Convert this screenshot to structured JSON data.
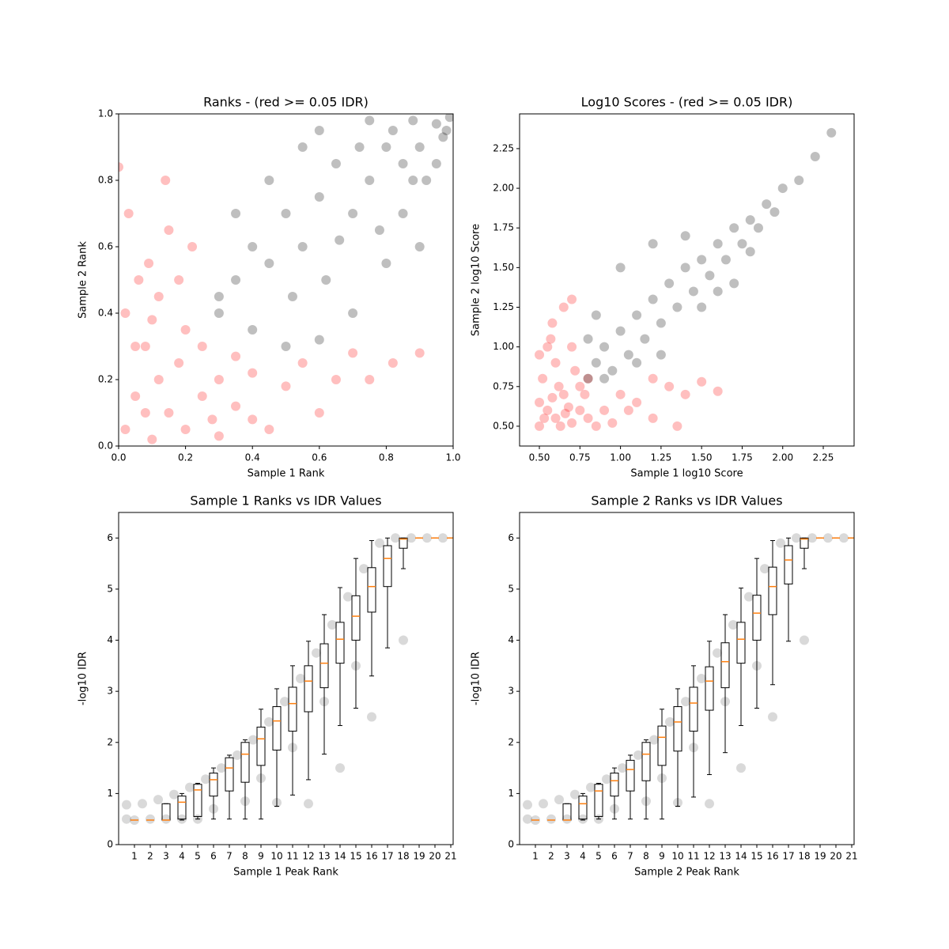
{
  "chart_data": [
    {
      "type": "scatter",
      "title": "Ranks - (red >= 0.05 IDR)",
      "x_label": "Sample 1 Rank",
      "y_label": "Sample 2 Rank",
      "xlim": [
        0,
        1
      ],
      "ylim": [
        0,
        1
      ],
      "xticks": [
        {
          "value": 0,
          "label": "0.0"
        },
        0.2,
        0.4,
        0.6,
        0.8,
        {
          "value": 1,
          "label": "1.0"
        }
      ],
      "yticks": [
        {
          "value": 0,
          "label": "0.0"
        },
        0.2,
        0.4,
        0.6,
        0.8,
        {
          "value": 1,
          "label": "1.0"
        }
      ],
      "alpha": 0.25,
      "series": [
        {
          "color": "#ff0000",
          "x": [
            0.02,
            0.05,
            0.08,
            0.1,
            0.12,
            0.15,
            0.18,
            0.2,
            0.22,
            0.25,
            0.28,
            0.3,
            0.35,
            0.4,
            0.45,
            0.5,
            0.55,
            0.6,
            0.65,
            0.7,
            0.03,
            0.06,
            0.1,
            0.0,
            0.14,
            0.2,
            0.05,
            0.08,
            0.12,
            0.3,
            0.4,
            0.18,
            0.02,
            0.25,
            0.75,
            0.82,
            0.9,
            0.15,
            0.09,
            0.35
          ],
          "y": [
            0.05,
            0.15,
            0.3,
            0.02,
            0.45,
            0.1,
            0.25,
            0.05,
            0.6,
            0.15,
            0.08,
            0.2,
            0.12,
            0.22,
            0.05,
            0.18,
            0.25,
            0.1,
            0.2,
            0.28,
            0.7,
            0.5,
            0.38,
            0.84,
            0.8,
            0.35,
            0.3,
            0.1,
            0.2,
            0.03,
            0.08,
            0.5,
            0.4,
            0.3,
            0.2,
            0.25,
            0.28,
            0.65,
            0.55,
            0.27
          ]
        },
        {
          "color": "#000000",
          "x": [
            0.3,
            0.35,
            0.4,
            0.45,
            0.5,
            0.55,
            0.6,
            0.62,
            0.65,
            0.7,
            0.72,
            0.75,
            0.78,
            0.8,
            0.82,
            0.85,
            0.88,
            0.9,
            0.92,
            0.95,
            0.97,
            0.99,
            0.5,
            0.6,
            0.7,
            0.8,
            0.4,
            0.35,
            0.45,
            0.55,
            0.9,
            0.85,
            0.3,
            0.6,
            0.75,
            0.95,
            0.98,
            0.88,
            0.66,
            0.52
          ],
          "y": [
            0.45,
            0.5,
            0.6,
            0.55,
            0.7,
            0.6,
            0.75,
            0.5,
            0.85,
            0.7,
            0.9,
            0.8,
            0.65,
            0.9,
            0.95,
            0.85,
            0.98,
            0.9,
            0.8,
            0.97,
            0.93,
            0.99,
            0.3,
            0.32,
            0.4,
            0.55,
            0.35,
            0.7,
            0.8,
            0.9,
            0.6,
            0.7,
            0.4,
            0.95,
            0.98,
            0.85,
            0.95,
            0.8,
            0.62,
            0.45
          ]
        }
      ]
    },
    {
      "type": "scatter",
      "title": "Log10 Scores - (red >= 0.05 IDR)",
      "x_label": "Sample 1 log10 Score",
      "y_label": "Sample 2 log10 Score",
      "xlim": [
        0.378,
        2.44
      ],
      "ylim": [
        0.375,
        2.469
      ],
      "xticks": [
        {
          "value": 0.5,
          "label": "0.50"
        },
        0.75,
        {
          "value": 1,
          "label": "1.00"
        },
        1.25,
        {
          "value": 1.5,
          "label": "1.50"
        },
        1.75,
        {
          "value": 2,
          "label": "2.00"
        },
        2.25
      ],
      "yticks": [
        {
          "value": 0.5,
          "label": "0.50"
        },
        0.75,
        {
          "value": 1,
          "label": "1.00"
        },
        1.25,
        {
          "value": 1.5,
          "label": "1.50"
        },
        1.75,
        {
          "value": 2,
          "label": "2.00"
        },
        2.25
      ],
      "alpha": 0.25,
      "series": [
        {
          "color": "#ff0000",
          "x": [
            0.5,
            0.55,
            0.6,
            0.65,
            0.7,
            0.52,
            0.55,
            0.6,
            0.58,
            0.75,
            0.8,
            0.9,
            1.0,
            1.1,
            1.2,
            1.3,
            1.4,
            1.5,
            0.65,
            0.7,
            0.5,
            0.53,
            0.62,
            0.68,
            0.72,
            0.78,
            0.85,
            0.95,
            0.57,
            0.63,
            1.6,
            1.05,
            0.5,
            0.75,
            0.58,
            0.66,
            1.2,
            1.35,
            0.8,
            0.7
          ],
          "y": [
            0.5,
            0.6,
            0.55,
            0.7,
            0.52,
            0.8,
            1.0,
            0.9,
            1.15,
            0.6,
            0.55,
            0.6,
            0.7,
            0.65,
            0.55,
            0.75,
            0.7,
            0.78,
            1.25,
            1.3,
            0.65,
            0.55,
            0.75,
            0.62,
            0.85,
            0.7,
            0.5,
            0.52,
            1.05,
            0.5,
            0.72,
            0.6,
            0.95,
            0.75,
            0.68,
            0.58,
            0.8,
            0.5,
            0.8,
            1.0
          ]
        },
        {
          "color": "#000000",
          "x": [
            0.8,
            0.85,
            0.9,
            0.95,
            1.0,
            1.05,
            1.1,
            1.15,
            1.2,
            1.25,
            1.3,
            1.35,
            1.4,
            1.45,
            1.5,
            1.55,
            1.6,
            1.65,
            1.7,
            1.75,
            1.8,
            1.85,
            1.9,
            1.95,
            2.0,
            2.1,
            2.2,
            2.3,
            0.85,
            1.0,
            1.2,
            1.5,
            1.7,
            0.9,
            1.25,
            1.4,
            1.6,
            0.8,
            1.1,
            1.8
          ],
          "y": [
            0.8,
            0.9,
            1.0,
            0.85,
            1.1,
            0.95,
            1.2,
            1.05,
            1.3,
            1.15,
            1.4,
            1.25,
            1.5,
            1.35,
            1.55,
            1.45,
            1.65,
            1.55,
            1.75,
            1.65,
            1.8,
            1.75,
            1.9,
            1.85,
            2.0,
            2.05,
            2.2,
            2.35,
            1.2,
            1.5,
            1.65,
            1.25,
            1.4,
            0.8,
            0.95,
            1.7,
            1.35,
            1.05,
            0.9,
            1.6
          ]
        }
      ]
    },
    {
      "type": "box",
      "title": "Sample 1 Ranks vs IDR Values",
      "x_label": "Sample 1 Peak Rank",
      "y_label": "-log10 IDR",
      "xlim": [
        0,
        21.15
      ],
      "ylim": [
        0,
        6.5
      ],
      "xticks": [
        1,
        2,
        3,
        4,
        5,
        6,
        7,
        8,
        9,
        10,
        11,
        12,
        13,
        14,
        15,
        16,
        17,
        18,
        19,
        20,
        21
      ],
      "yticks": [
        0,
        1,
        2,
        3,
        4,
        5,
        6
      ],
      "points": {
        "color": "#000000",
        "alpha": 0.15,
        "x": [
          0.5,
          1,
          2,
          3,
          4,
          5,
          0.5,
          1.5,
          2.5,
          3.5,
          4.5,
          5.5,
          6.5,
          7.5,
          8.5,
          9.5,
          10.5,
          11.5,
          12.5,
          13.5,
          14.5,
          15.5,
          16.5,
          17.5,
          18.5,
          19.5,
          20.5,
          8,
          10,
          12,
          14,
          16,
          18,
          15,
          6,
          9,
          11,
          13
        ],
        "y": [
          0.5,
          0.48,
          0.5,
          0.5,
          0.5,
          0.5,
          0.78,
          0.8,
          0.88,
          0.98,
          1.12,
          1.28,
          1.5,
          1.75,
          2.05,
          2.4,
          2.8,
          3.25,
          3.75,
          4.3,
          4.85,
          5.4,
          5.9,
          6.0,
          6.0,
          6.0,
          6.0,
          0.85,
          0.82,
          0.8,
          1.5,
          2.5,
          4,
          3.5,
          0.7,
          1.3,
          1.9,
          2.8
        ]
      },
      "x": [
        1,
        2,
        3,
        4,
        5,
        6,
        7,
        8,
        9,
        10,
        11,
        12,
        13,
        14,
        15,
        16,
        17,
        18,
        19,
        20,
        21
      ],
      "whislo": [
        0.48,
        0.48,
        0.48,
        0.48,
        0.5,
        0.5,
        0.5,
        0.5,
        0.5,
        0.75,
        0.97,
        1.27,
        1.77,
        2.33,
        2.67,
        3.3,
        3.85,
        5.4,
        6.0,
        6.0,
        6.0
      ],
      "q1": [
        0.48,
        0.48,
        0.48,
        0.5,
        0.55,
        0.95,
        1.05,
        1.22,
        1.55,
        1.85,
        2.22,
        2.6,
        3.07,
        3.55,
        4.0,
        4.55,
        5.05,
        5.8,
        6.0,
        6.0,
        6.0
      ],
      "med": [
        0.48,
        0.48,
        0.48,
        0.83,
        1.07,
        1.27,
        1.5,
        1.77,
        2.07,
        2.42,
        2.76,
        3.2,
        3.55,
        4.02,
        4.47,
        5.05,
        5.6,
        5.98,
        6.0,
        6.0,
        6.0
      ],
      "q3": [
        0.48,
        0.48,
        0.8,
        0.95,
        1.18,
        1.4,
        1.7,
        2.0,
        2.3,
        2.7,
        3.08,
        3.5,
        3.93,
        4.35,
        4.87,
        5.42,
        5.85,
        6.0,
        6.0,
        6.0,
        6.0
      ],
      "whishi": [
        0.48,
        0.48,
        0.8,
        1.0,
        1.2,
        1.5,
        1.75,
        2.05,
        2.65,
        3.05,
        3.5,
        3.98,
        4.5,
        5.03,
        5.6,
        5.95,
        6.0,
        6.0,
        6.0,
        6.0,
        6.0
      ],
      "box_color": "#000000",
      "median_color": "#ff7f0e"
    },
    {
      "type": "box",
      "title": "Sample 2 Ranks vs IDR Values",
      "x_label": "Sample 2 Peak Rank",
      "y_label": "-log10 IDR",
      "xlim": [
        0,
        21.15
      ],
      "ylim": [
        0,
        6.5
      ],
      "xticks": [
        1,
        2,
        3,
        4,
        5,
        6,
        7,
        8,
        9,
        10,
        11,
        12,
        13,
        14,
        15,
        16,
        17,
        18,
        19,
        20,
        21
      ],
      "yticks": [
        0,
        1,
        2,
        3,
        4,
        5,
        6
      ],
      "points": {
        "color": "#000000",
        "alpha": 0.15,
        "x": [
          0.5,
          1,
          2,
          3,
          4,
          5,
          0.5,
          1.5,
          2.5,
          3.5,
          4.5,
          5.5,
          6.5,
          7.5,
          8.5,
          9.5,
          10.5,
          11.5,
          12.5,
          13.5,
          14.5,
          15.5,
          16.5,
          17.5,
          18.5,
          19.5,
          20.5,
          8,
          10,
          12,
          14,
          16,
          18,
          15,
          6,
          9,
          11,
          13
        ],
        "y": [
          0.5,
          0.48,
          0.5,
          0.5,
          0.5,
          0.5,
          0.78,
          0.8,
          0.88,
          0.98,
          1.12,
          1.28,
          1.5,
          1.75,
          2.05,
          2.4,
          2.8,
          3.25,
          3.75,
          4.3,
          4.85,
          5.4,
          5.9,
          6.0,
          6.0,
          6.0,
          6.0,
          0.85,
          0.82,
          0.8,
          1.5,
          2.5,
          4,
          3.5,
          0.7,
          1.3,
          1.9,
          2.8
        ]
      },
      "x": [
        1,
        2,
        3,
        4,
        5,
        6,
        7,
        8,
        9,
        10,
        11,
        12,
        13,
        14,
        15,
        16,
        17,
        18,
        19,
        20,
        21
      ],
      "whislo": [
        0.48,
        0.48,
        0.48,
        0.48,
        0.5,
        0.5,
        0.5,
        0.5,
        0.5,
        0.75,
        0.93,
        1.37,
        1.8,
        2.33,
        2.67,
        3.13,
        3.98,
        5.4,
        6.0,
        6.0,
        6.0
      ],
      "q1": [
        0.48,
        0.48,
        0.48,
        0.5,
        0.55,
        0.95,
        1.05,
        1.25,
        1.55,
        1.83,
        2.22,
        2.63,
        3.07,
        3.55,
        4.0,
        4.5,
        5.1,
        5.8,
        6.0,
        6.0,
        6.0
      ],
      "med": [
        0.48,
        0.48,
        0.48,
        0.8,
        1.05,
        1.25,
        1.47,
        1.77,
        2.1,
        2.4,
        2.77,
        3.2,
        3.58,
        4.02,
        4.53,
        5.05,
        5.57,
        5.98,
        6.0,
        6.0,
        6.0
      ],
      "q3": [
        0.48,
        0.48,
        0.8,
        0.95,
        1.18,
        1.4,
        1.65,
        2.0,
        2.32,
        2.7,
        3.08,
        3.48,
        3.95,
        4.35,
        4.88,
        5.43,
        5.85,
        6.0,
        6.0,
        6.0,
        6.0
      ],
      "whishi": [
        0.48,
        0.48,
        0.8,
        1.0,
        1.2,
        1.5,
        1.75,
        2.05,
        2.65,
        3.05,
        3.5,
        3.98,
        4.5,
        5.02,
        5.6,
        5.95,
        6.0,
        6.0,
        6.0,
        6.0,
        6.0
      ],
      "box_color": "#000000",
      "median_color": "#ff7f0e"
    }
  ]
}
